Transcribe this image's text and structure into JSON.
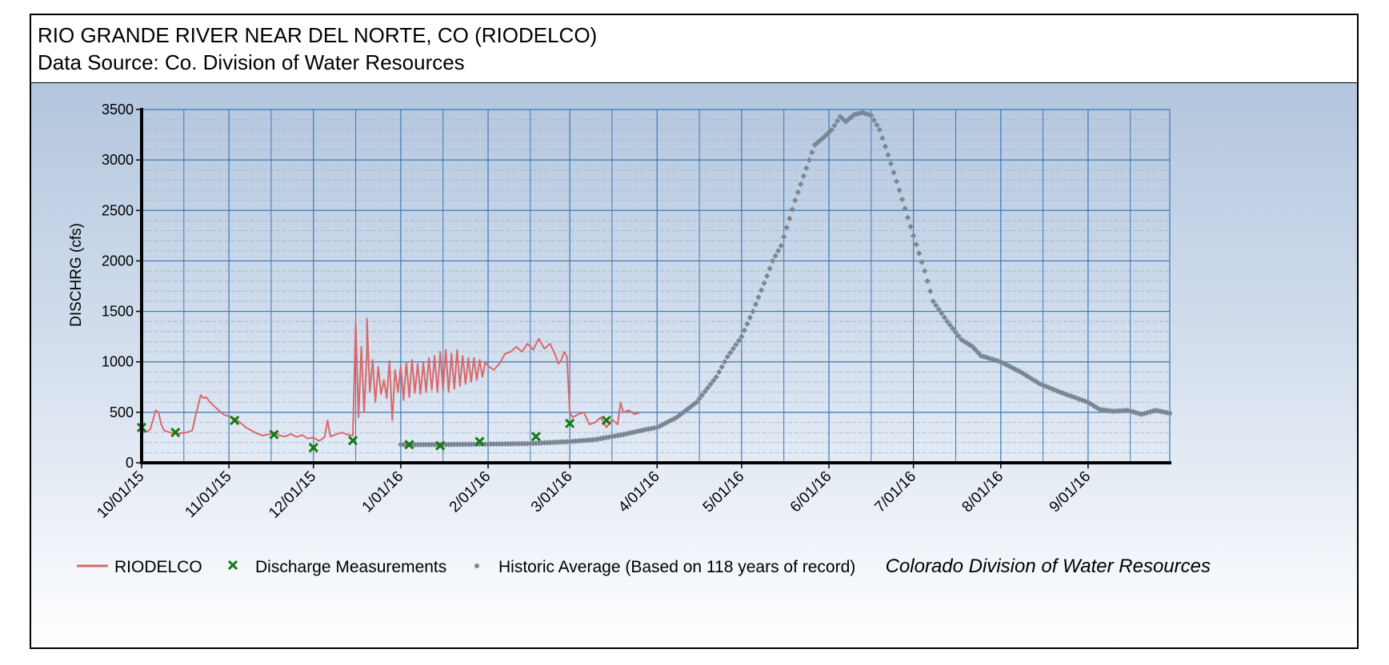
{
  "header": {
    "title": "RIO GRANDE RIVER NEAR DEL NORTE, CO (RIODELCO)",
    "subtitle": "Data Source: Co. Division of Water Resources"
  },
  "credit": "Colorado Division of Water Resources",
  "colors": {
    "background_top": "#b3c6de",
    "background_bottom": "#ffffff",
    "gridline_major": "#3d78b8",
    "gridline_minor": "#9fb3cc",
    "riodelco": "#d9696a",
    "measurements": "#127a12",
    "historic": "#7a8796",
    "axis": "#000000"
  },
  "chart_data": {
    "type": "line",
    "ylabel": "DISCHRG (cfs)",
    "xlabel": "",
    "ylim": [
      0,
      3500
    ],
    "yticks": [
      0,
      500,
      1000,
      1500,
      2000,
      2500,
      3000,
      3500
    ],
    "xlim": [
      "2015-10-01",
      "2016-09-30"
    ],
    "xtick_labels": [
      "10/01/15",
      "11/01/15",
      "12/01/15",
      "1/01/16",
      "2/01/16",
      "3/01/16",
      "4/01/16",
      "5/01/16",
      "6/01/16",
      "7/01/16",
      "8/01/16",
      "9/01/16"
    ],
    "grid": true,
    "legend_position": "bottom",
    "series": [
      {
        "name": "RIODELCO",
        "style": "line",
        "points": [
          [
            "2015-10-01",
            300
          ],
          [
            "2015-10-02",
            305
          ],
          [
            "2015-10-03",
            310
          ],
          [
            "2015-10-04",
            330
          ],
          [
            "2015-10-05",
            420
          ],
          [
            "2015-10-06",
            520
          ],
          [
            "2015-10-07",
            500
          ],
          [
            "2015-10-08",
            380
          ],
          [
            "2015-10-09",
            320
          ],
          [
            "2015-10-11",
            300
          ],
          [
            "2015-10-14",
            290
          ],
          [
            "2015-10-17",
            300
          ],
          [
            "2015-10-19",
            320
          ],
          [
            "2015-10-20",
            450
          ],
          [
            "2015-10-21",
            560
          ],
          [
            "2015-10-22",
            670
          ],
          [
            "2015-10-23",
            640
          ],
          [
            "2015-10-24",
            650
          ],
          [
            "2015-10-25",
            610
          ],
          [
            "2015-10-26",
            580
          ],
          [
            "2015-10-28",
            530
          ],
          [
            "2015-10-30",
            480
          ],
          [
            "2015-11-01",
            460
          ],
          [
            "2015-11-03",
            440
          ],
          [
            "2015-11-05",
            400
          ],
          [
            "2015-11-07",
            350
          ],
          [
            "2015-11-09",
            320
          ],
          [
            "2015-11-11",
            290
          ],
          [
            "2015-11-13",
            270
          ],
          [
            "2015-11-15",
            280
          ],
          [
            "2015-11-17",
            300
          ],
          [
            "2015-11-19",
            270
          ],
          [
            "2015-11-21",
            260
          ],
          [
            "2015-11-23",
            285
          ],
          [
            "2015-11-25",
            255
          ],
          [
            "2015-11-27",
            275
          ],
          [
            "2015-11-29",
            240
          ],
          [
            "2015-12-01",
            250
          ],
          [
            "2015-12-03",
            215
          ],
          [
            "2015-12-05",
            255
          ],
          [
            "2015-12-06",
            420
          ],
          [
            "2015-12-07",
            260
          ],
          [
            "2015-12-09",
            280
          ],
          [
            "2015-12-11",
            300
          ],
          [
            "2015-12-13",
            280
          ],
          [
            "2015-12-15",
            270
          ],
          [
            "2015-12-16",
            1380
          ],
          [
            "2015-12-17",
            450
          ],
          [
            "2015-12-18",
            1150
          ],
          [
            "2015-12-19",
            500
          ],
          [
            "2015-12-20",
            1100
          ],
          [
            "2015-12-20",
            1430
          ],
          [
            "2015-12-21",
            700
          ],
          [
            "2015-12-22",
            1020
          ],
          [
            "2015-12-23",
            600
          ],
          [
            "2015-12-24",
            950
          ],
          [
            "2015-12-25",
            680
          ],
          [
            "2015-12-26",
            820
          ],
          [
            "2015-12-27",
            640
          ],
          [
            "2015-12-28",
            1010
          ],
          [
            "2015-12-29",
            420
          ],
          [
            "2015-12-30",
            920
          ],
          [
            "2015-12-31",
            700
          ],
          [
            "2016-01-01",
            960
          ],
          [
            "2016-01-02",
            620
          ],
          [
            "2016-01-03",
            1000
          ],
          [
            "2016-01-04",
            650
          ],
          [
            "2016-01-05",
            1020
          ],
          [
            "2016-01-06",
            690
          ],
          [
            "2016-01-07",
            980
          ],
          [
            "2016-01-08",
            680
          ],
          [
            "2016-01-09",
            990
          ],
          [
            "2016-01-10",
            700
          ],
          [
            "2016-01-11",
            1040
          ],
          [
            "2016-01-12",
            720
          ],
          [
            "2016-01-13",
            1060
          ],
          [
            "2016-01-14",
            700
          ],
          [
            "2016-01-15",
            1100
          ],
          [
            "2016-01-16",
            720
          ],
          [
            "2016-01-17",
            1120
          ],
          [
            "2016-01-18",
            700
          ],
          [
            "2016-01-19",
            1080
          ],
          [
            "2016-01-20",
            730
          ],
          [
            "2016-01-21",
            1120
          ],
          [
            "2016-01-22",
            760
          ],
          [
            "2016-01-23",
            1060
          ],
          [
            "2016-01-24",
            780
          ],
          [
            "2016-01-25",
            1040
          ],
          [
            "2016-01-26",
            800
          ],
          [
            "2016-01-27",
            1040
          ],
          [
            "2016-01-28",
            820
          ],
          [
            "2016-01-29",
            1020
          ],
          [
            "2016-01-30",
            850
          ],
          [
            "2016-01-31",
            1000
          ],
          [
            "2016-02-01",
            960
          ],
          [
            "2016-02-03",
            920
          ],
          [
            "2016-02-05",
            980
          ],
          [
            "2016-02-07",
            1080
          ],
          [
            "2016-02-09",
            1100
          ],
          [
            "2016-02-11",
            1150
          ],
          [
            "2016-02-13",
            1100
          ],
          [
            "2016-02-15",
            1180
          ],
          [
            "2016-02-17",
            1120
          ],
          [
            "2016-02-19",
            1230
          ],
          [
            "2016-02-21",
            1130
          ],
          [
            "2016-02-23",
            1180
          ],
          [
            "2016-02-25",
            1060
          ],
          [
            "2016-02-26",
            980
          ],
          [
            "2016-02-27",
            1020
          ],
          [
            "2016-02-28",
            1100
          ],
          [
            "2016-02-29",
            1050
          ],
          [
            "2016-03-01",
            500
          ],
          [
            "2016-03-02",
            450
          ],
          [
            "2016-03-04",
            480
          ],
          [
            "2016-03-06",
            500
          ],
          [
            "2016-03-08",
            380
          ],
          [
            "2016-03-10",
            400
          ],
          [
            "2016-03-12",
            450
          ],
          [
            "2016-03-14",
            350
          ],
          [
            "2016-03-16",
            430
          ],
          [
            "2016-03-18",
            380
          ],
          [
            "2016-03-19",
            600
          ],
          [
            "2016-03-20",
            500
          ],
          [
            "2016-03-22",
            520
          ],
          [
            "2016-03-24",
            480
          ],
          [
            "2016-03-26",
            500
          ]
        ]
      },
      {
        "name": "Discharge Measurements",
        "style": "x-marker",
        "points": [
          [
            "2015-10-01",
            350
          ],
          [
            "2015-10-13",
            300
          ],
          [
            "2015-11-03",
            420
          ],
          [
            "2015-11-17",
            280
          ],
          [
            "2015-12-01",
            150
          ],
          [
            "2015-12-15",
            220
          ],
          [
            "2016-01-04",
            180
          ],
          [
            "2016-01-15",
            170
          ],
          [
            "2016-01-29",
            210
          ],
          [
            "2016-02-18",
            260
          ],
          [
            "2016-03-01",
            390
          ],
          [
            "2016-03-14",
            420
          ]
        ]
      },
      {
        "name": "Historic Average (Based on 118 years of record)",
        "style": "dots",
        "points": [
          [
            "2016-01-01",
            180
          ],
          [
            "2016-01-15",
            180
          ],
          [
            "2016-02-01",
            185
          ],
          [
            "2016-02-15",
            190
          ],
          [
            "2016-03-01",
            210
          ],
          [
            "2016-03-10",
            230
          ],
          [
            "2016-03-20",
            280
          ],
          [
            "2016-03-28",
            330
          ],
          [
            "2016-04-01",
            350
          ],
          [
            "2016-04-08",
            450
          ],
          [
            "2016-04-15",
            600
          ],
          [
            "2016-04-22",
            850
          ],
          [
            "2016-04-26",
            1050
          ],
          [
            "2016-05-01",
            1250
          ],
          [
            "2016-05-05",
            1500
          ],
          [
            "2016-05-10",
            1850
          ],
          [
            "2016-05-12",
            2000
          ],
          [
            "2016-05-15",
            2150
          ],
          [
            "2016-05-20",
            2600
          ],
          [
            "2016-05-25",
            3000
          ],
          [
            "2016-05-27",
            3150
          ],
          [
            "2016-05-30",
            3220
          ],
          [
            "2016-06-02",
            3300
          ],
          [
            "2016-06-05",
            3430
          ],
          [
            "2016-06-07",
            3380
          ],
          [
            "2016-06-10",
            3450
          ],
          [
            "2016-06-13",
            3470
          ],
          [
            "2016-06-16",
            3440
          ],
          [
            "2016-06-19",
            3300
          ],
          [
            "2016-06-22",
            3050
          ],
          [
            "2016-06-26",
            2700
          ],
          [
            "2016-07-01",
            2250
          ],
          [
            "2016-07-05",
            1900
          ],
          [
            "2016-07-08",
            1600
          ],
          [
            "2016-07-13",
            1400
          ],
          [
            "2016-07-18",
            1220
          ],
          [
            "2016-07-22",
            1150
          ],
          [
            "2016-07-25",
            1060
          ],
          [
            "2016-08-01",
            1000
          ],
          [
            "2016-08-08",
            900
          ],
          [
            "2016-08-15",
            780
          ],
          [
            "2016-08-22",
            700
          ],
          [
            "2016-09-01",
            600
          ],
          [
            "2016-09-05",
            530
          ],
          [
            "2016-09-10",
            510
          ],
          [
            "2016-09-15",
            520
          ],
          [
            "2016-09-20",
            480
          ],
          [
            "2016-09-25",
            520
          ],
          [
            "2016-09-30",
            490
          ]
        ]
      }
    ]
  }
}
